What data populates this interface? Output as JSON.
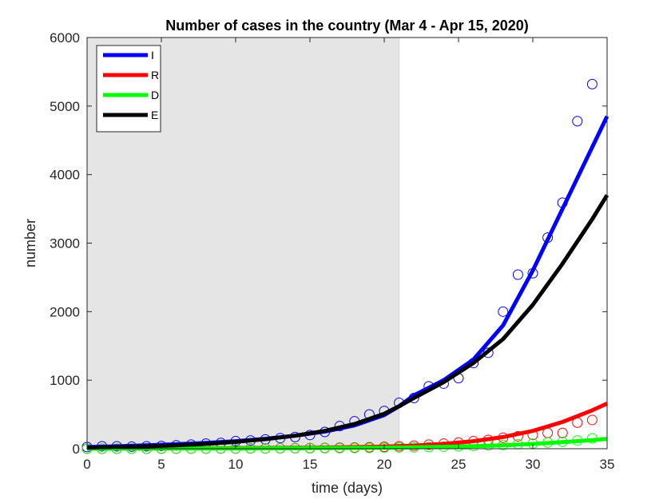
{
  "chart_data": {
    "type": "line",
    "title": "Number of cases in the country (Mar 4 - Apr 15, 2020)",
    "xlabel": "time (days)",
    "ylabel": "number",
    "xlim": [
      0,
      35
    ],
    "ylim": [
      0,
      6000
    ],
    "xticks": [
      0,
      5,
      10,
      15,
      20,
      25,
      30,
      35
    ],
    "yticks": [
      0,
      1000,
      2000,
      3000,
      4000,
      5000,
      6000
    ],
    "grid": false,
    "legend_position": "top-left",
    "shaded_region": {
      "x_start": 0,
      "x_end": 21,
      "color": "#e5e5e5"
    },
    "series": [
      {
        "name": "I",
        "color": "#0000ff",
        "line_width": 5,
        "fit": {
          "x": [
            0,
            2,
            4,
            6,
            8,
            10,
            12,
            14,
            16,
            18,
            20,
            21,
            22,
            24,
            26,
            28,
            30,
            32,
            34,
            35
          ],
          "y": [
            25,
            35,
            50,
            65,
            85,
            110,
            145,
            190,
            250,
            340,
            490,
            620,
            780,
            1000,
            1300,
            1800,
            2600,
            3500,
            4400,
            4850
          ]
        },
        "observed": {
          "x": [
            0,
            1,
            2,
            3,
            4,
            5,
            6,
            7,
            8,
            9,
            10,
            11,
            12,
            13,
            14,
            15,
            16,
            17,
            18,
            19,
            20,
            21,
            22,
            23,
            24,
            25,
            26,
            27,
            28,
            29,
            30,
            31,
            32,
            33,
            34
          ],
          "y": [
            25,
            35,
            35,
            30,
            35,
            40,
            50,
            60,
            75,
            85,
            110,
            120,
            135,
            155,
            170,
            200,
            245,
            330,
            400,
            500,
            550,
            670,
            740,
            910,
            950,
            1030,
            1250,
            1400,
            2000,
            2540,
            2560,
            3080,
            3590,
            4780,
            5320
          ]
        }
      },
      {
        "name": "R",
        "color": "#ff0000",
        "line_width": 5,
        "fit": {
          "x": [
            0,
            5,
            10,
            15,
            20,
            22,
            24,
            26,
            28,
            30,
            32,
            34,
            35
          ],
          "y": [
            0,
            3,
            8,
            15,
            30,
            45,
            70,
            110,
            170,
            260,
            390,
            560,
            660
          ]
        },
        "observed": {
          "x": [
            0,
            1,
            2,
            3,
            4,
            5,
            6,
            7,
            8,
            9,
            10,
            11,
            12,
            13,
            14,
            15,
            16,
            17,
            18,
            19,
            20,
            21,
            22,
            23,
            24,
            25,
            26,
            27,
            28,
            29,
            30,
            31,
            32,
            33,
            34
          ],
          "y": [
            0,
            0,
            0,
            0,
            0,
            1,
            1,
            2,
            2,
            3,
            3,
            4,
            5,
            6,
            8,
            10,
            12,
            15,
            18,
            22,
            28,
            35,
            45,
            60,
            75,
            90,
            110,
            130,
            160,
            180,
            200,
            230,
            230,
            380,
            420
          ]
        }
      },
      {
        "name": "D",
        "color": "#00ff00",
        "line_width": 5,
        "fit": {
          "x": [
            0,
            5,
            10,
            15,
            20,
            22,
            24,
            26,
            28,
            30,
            32,
            34,
            35
          ],
          "y": [
            0,
            2,
            4,
            8,
            15,
            20,
            28,
            38,
            50,
            70,
            95,
            125,
            145
          ]
        },
        "observed": {
          "x": [
            0,
            1,
            2,
            3,
            4,
            5,
            6,
            7,
            8,
            9,
            10,
            11,
            12,
            13,
            14,
            15,
            16,
            17,
            18,
            19,
            20,
            21,
            22,
            23,
            24,
            25,
            26,
            27,
            28,
            29,
            30,
            31,
            32,
            33,
            34
          ],
          "y": [
            0,
            0,
            0,
            0,
            0,
            0,
            1,
            1,
            1,
            2,
            2,
            3,
            3,
            4,
            5,
            6,
            7,
            8,
            10,
            12,
            15,
            18,
            20,
            25,
            30,
            35,
            40,
            50,
            55,
            65,
            75,
            90,
            100,
            120,
            150
          ]
        }
      },
      {
        "name": "E",
        "color": "#000000",
        "line_width": 5,
        "fit": {
          "x": [
            0,
            2,
            4,
            6,
            8,
            10,
            12,
            14,
            16,
            18,
            20,
            21,
            22,
            24,
            26,
            28,
            30,
            32,
            34,
            35
          ],
          "y": [
            15,
            25,
            35,
            50,
            70,
            100,
            140,
            190,
            260,
            360,
            510,
            620,
            740,
            970,
            1250,
            1600,
            2100,
            2700,
            3350,
            3700
          ]
        }
      }
    ]
  }
}
